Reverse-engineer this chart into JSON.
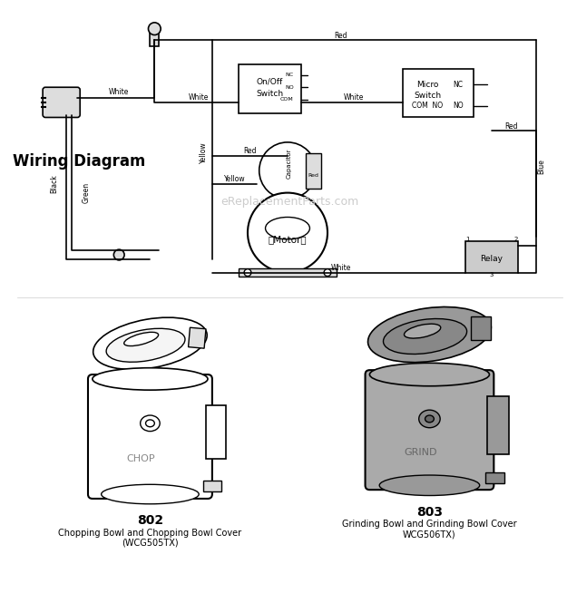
{
  "title": "Wiring Diagram",
  "bg_color": "#ffffff",
  "watermark": "eReplacementParts.com",
  "part_802_label": "802",
  "part_802_desc1": "Chopping Bowl and Chopping Bowl Cover",
  "part_802_desc2": "(WCG505TX)",
  "part_803_label": "803",
  "part_803_desc1": "Grinding Bowl and Grinding Bowl Cover",
  "part_803_desc2": "WCG506TX)",
  "wire_color_black": "#000000",
  "wire_color_gray": "#888888",
  "component_fill": "#e8e8e8",
  "grinding_bowl_fill": "#aaaaaa",
  "text_color": "#000000",
  "watermark_color": "#cccccc"
}
